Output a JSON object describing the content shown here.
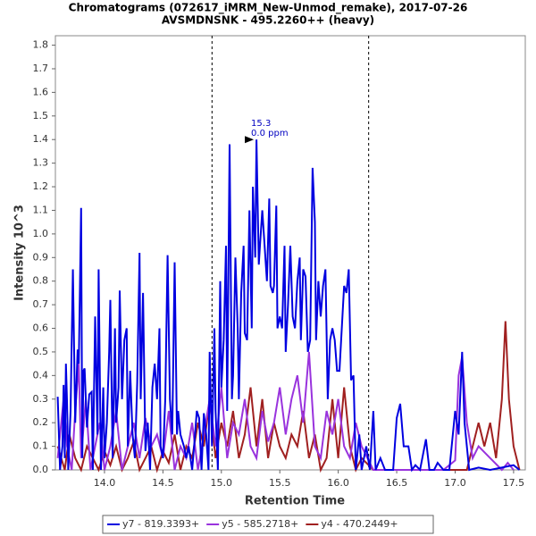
{
  "chart_data": {
    "type": "line",
    "title": "Chromatograms (072617_iMRM_New-Unmod_remake), 2017-07-26",
    "subtitle": "AVSMDNSNK - 495.2260++ (heavy)",
    "x_label": "Retention Time",
    "y_label": "Intensity 10^3",
    "xlim": [
      13.58,
      17.6
    ],
    "ylim": [
      0,
      1.84
    ],
    "xticks": [
      {
        "value": 14,
        "label": "14.0"
      },
      14.5,
      {
        "value": 15,
        "label": "15.0"
      },
      15.5,
      {
        "value": 16,
        "label": "16.0"
      },
      16.5,
      {
        "value": 17,
        "label": "17.0"
      },
      17.5
    ],
    "yticks": [
      {
        "value": 0,
        "label": "0.0"
      },
      0.1,
      0.2,
      0.3,
      0.4,
      0.5,
      0.6,
      0.7,
      0.8,
      0.9,
      {
        "value": 1,
        "label": "1.0"
      },
      1.1,
      1.2,
      1.3,
      1.4,
      1.5,
      1.6,
      1.7,
      1.8
    ],
    "vlines": [
      14.92,
      16.26
    ],
    "annotation": {
      "x": 15.3,
      "y": 1.4,
      "label": "15.3",
      "text": "0.0 ppm"
    },
    "series": [
      {
        "name": "y7 - 819.3393+",
        "color": "#0000e0",
        "x": [
          13.6,
          13.62,
          13.64,
          13.65,
          13.66,
          13.67,
          13.68,
          13.69,
          13.71,
          13.73,
          13.75,
          13.77,
          13.78,
          13.8,
          13.81,
          13.82,
          13.83,
          13.85,
          13.87,
          13.89,
          13.9,
          13.92,
          13.94,
          13.95,
          13.97,
          13.99,
          14.0,
          14.02,
          14.04,
          14.05,
          14.07,
          14.09,
          14.1,
          14.12,
          14.13,
          14.15,
          14.17,
          14.19,
          14.2,
          14.22,
          14.24,
          14.26,
          14.28,
          14.3,
          14.31,
          14.33,
          14.35,
          14.37,
          14.39,
          14.41,
          14.43,
          14.45,
          14.47,
          14.48,
          14.5,
          14.52,
          14.54,
          14.56,
          14.58,
          14.6,
          14.62,
          14.63,
          14.65,
          14.68,
          14.7,
          14.72,
          14.75,
          14.77,
          14.79,
          14.81,
          14.83,
          14.85,
          14.87,
          14.89,
          14.9,
          14.92,
          14.94,
          14.95,
          14.97,
          14.99,
          15.0,
          15.02,
          15.04,
          15.05,
          15.07,
          15.09,
          15.1,
          15.12,
          15.14,
          15.15,
          15.17,
          15.19,
          15.2,
          15.22,
          15.24,
          15.26,
          15.27,
          15.29,
          15.3,
          15.32,
          15.33,
          15.35,
          15.37,
          15.39,
          15.41,
          15.42,
          15.44,
          15.45,
          15.47,
          15.48,
          15.5,
          15.52,
          15.54,
          15.55,
          15.57,
          15.59,
          15.61,
          15.63,
          15.65,
          15.67,
          15.68,
          15.7,
          15.72,
          15.74,
          15.76,
          15.78,
          15.8,
          15.81,
          15.83,
          15.85,
          15.87,
          15.89,
          15.91,
          15.93,
          15.95,
          15.97,
          15.99,
          16.01,
          16.03,
          16.05,
          16.07,
          16.09,
          16.11,
          16.13,
          16.15,
          16.18,
          16.2,
          16.24,
          16.27,
          16.3,
          16.32,
          16.36,
          16.4,
          16.47,
          16.5,
          16.53,
          16.56,
          16.6,
          16.63,
          16.66,
          16.7,
          16.75,
          16.78,
          16.82,
          16.85,
          16.9,
          16.95,
          17.0,
          17.03,
          17.06,
          17.08,
          17.12,
          17.2,
          17.3,
          17.4,
          17.5,
          17.55
        ],
        "values": [
          0.31,
          0,
          0.1,
          0.36,
          0.05,
          0.45,
          0.28,
          0,
          0.25,
          0.85,
          0.2,
          0.51,
          0.45,
          1.11,
          0.05,
          0.42,
          0.43,
          0.18,
          0.32,
          0.33,
          0,
          0.65,
          0.15,
          0.85,
          0,
          0.35,
          0.05,
          0.2,
          0.5,
          0.72,
          0.05,
          0.6,
          0.2,
          0.35,
          0.76,
          0.3,
          0.55,
          0.6,
          0.1,
          0.42,
          0.15,
          0.05,
          0.37,
          0.92,
          0.3,
          0.75,
          0.08,
          0.2,
          0,
          0.35,
          0.45,
          0.3,
          0.6,
          0.1,
          0.05,
          0.3,
          0.91,
          0.3,
          0.15,
          0.88,
          0.15,
          0.25,
          0.15,
          0.1,
          0.05,
          0.1,
          0,
          0.12,
          0.25,
          0.22,
          0,
          0.24,
          0.15,
          0,
          0.5,
          0.1,
          0.6,
          0.25,
          0,
          0.8,
          0.35,
          0.55,
          0.95,
          0.25,
          1.38,
          0.3,
          0.4,
          0.9,
          0.6,
          0.3,
          0.75,
          0.95,
          0.58,
          0.55,
          1.1,
          0.6,
          1.2,
          0.9,
          1.4,
          0.87,
          0.95,
          1.1,
          0.95,
          0.8,
          1.15,
          0.78,
          0.75,
          0.78,
          1.12,
          0.6,
          0.65,
          0.6,
          0.95,
          0.5,
          0.7,
          0.95,
          0.65,
          0.6,
          0.8,
          0.9,
          0.55,
          0.85,
          0.82,
          0.5,
          0.55,
          1.28,
          1.05,
          0.55,
          0.8,
          0.65,
          0.78,
          0.85,
          0.3,
          0.55,
          0.6,
          0.55,
          0.42,
          0.42,
          0.6,
          0.78,
          0.75,
          0.85,
          0.38,
          0.4,
          0,
          0.15,
          0,
          0.1,
          0,
          0.25,
          0,
          0.05,
          0,
          0,
          0.22,
          0.28,
          0.1,
          0.1,
          0,
          0.02,
          0,
          0.13,
          0,
          0,
          0.03,
          0,
          0,
          0.25,
          0.15,
          0.5,
          0.2,
          0,
          0.01,
          0,
          0.01,
          0.02,
          0
        ]
      },
      {
        "name": "y5 - 585.2718+",
        "color": "#9933dd",
        "x": [
          13.6,
          13.65,
          13.68,
          13.72,
          13.75,
          13.78,
          13.8,
          13.84,
          13.88,
          13.92,
          13.96,
          14.0,
          14.05,
          14.1,
          14.15,
          14.2,
          14.25,
          14.3,
          14.35,
          14.4,
          14.45,
          14.5,
          14.55,
          14.6,
          14.65,
          14.7,
          14.75,
          14.8,
          14.85,
          14.9,
          14.95,
          15.0,
          15.05,
          15.1,
          15.15,
          15.2,
          15.25,
          15.3,
          15.35,
          15.4,
          15.45,
          15.5,
          15.55,
          15.6,
          15.65,
          15.7,
          15.75,
          15.8,
          15.85,
          15.9,
          15.95,
          16.0,
          16.05,
          16.1,
          16.15,
          16.2,
          16.3,
          16.5,
          16.7,
          16.9,
          17.0,
          17.03,
          17.06,
          17.1,
          17.15,
          17.2,
          17.3,
          17.4,
          17.45,
          17.5
        ],
        "values": [
          0.05,
          0.3,
          0.1,
          0,
          0.25,
          0.45,
          0.05,
          0.3,
          0,
          0.1,
          0.2,
          0,
          0.1,
          0.25,
          0,
          0.1,
          0.2,
          0.05,
          0.22,
          0.1,
          0.15,
          0.05,
          0.25,
          0,
          0.1,
          0.05,
          0.2,
          0,
          0.15,
          0.3,
          0.1,
          0.35,
          0.05,
          0.2,
          0.15,
          0.3,
          0.1,
          0.05,
          0.25,
          0.12,
          0.2,
          0.35,
          0.15,
          0.3,
          0.4,
          0.2,
          0.5,
          0.1,
          0.05,
          0.25,
          0.15,
          0.3,
          0.1,
          0.05,
          0.2,
          0.1,
          0,
          0,
          0,
          0,
          0.04,
          0.4,
          0.48,
          0.2,
          0.05,
          0.1,
          0.05,
          0,
          0.03,
          0
        ]
      },
      {
        "name": "y4 - 470.2449+",
        "color": "#a02020",
        "x": [
          13.6,
          13.66,
          13.7,
          13.75,
          13.8,
          13.85,
          13.9,
          13.95,
          14.0,
          14.05,
          14.1,
          14.15,
          14.2,
          14.25,
          14.3,
          14.35,
          14.4,
          14.45,
          14.5,
          14.55,
          14.6,
          14.65,
          14.7,
          14.75,
          14.8,
          14.85,
          14.9,
          14.95,
          15.0,
          15.05,
          15.1,
          15.15,
          15.2,
          15.25,
          15.3,
          15.35,
          15.4,
          15.45,
          15.5,
          15.55,
          15.6,
          15.65,
          15.7,
          15.75,
          15.8,
          15.85,
          15.9,
          15.95,
          16.0,
          16.05,
          16.1,
          16.15,
          16.2,
          16.3,
          16.5,
          16.7,
          16.9,
          17.1,
          17.2,
          17.25,
          17.3,
          17.35,
          17.4,
          17.43,
          17.46,
          17.5,
          17.55
        ],
        "values": [
          0.1,
          0,
          0.15,
          0.05,
          0,
          0.1,
          0.05,
          0,
          0.08,
          0.02,
          0.1,
          0,
          0.05,
          0.12,
          0,
          0.05,
          0.1,
          0,
          0.08,
          0.03,
          0.15,
          0,
          0.1,
          0.05,
          0.2,
          0.1,
          0.3,
          0.05,
          0.2,
          0.1,
          0.25,
          0.05,
          0.15,
          0.35,
          0.1,
          0.3,
          0.05,
          0.2,
          0.1,
          0.05,
          0.15,
          0.1,
          0.25,
          0.05,
          0.15,
          0,
          0.05,
          0.3,
          0.05,
          0.35,
          0.1,
          0,
          0.05,
          0,
          0,
          0,
          0,
          0,
          0.2,
          0.1,
          0.2,
          0.05,
          0.3,
          0.63,
          0.3,
          0.1,
          0
        ]
      }
    ]
  }
}
